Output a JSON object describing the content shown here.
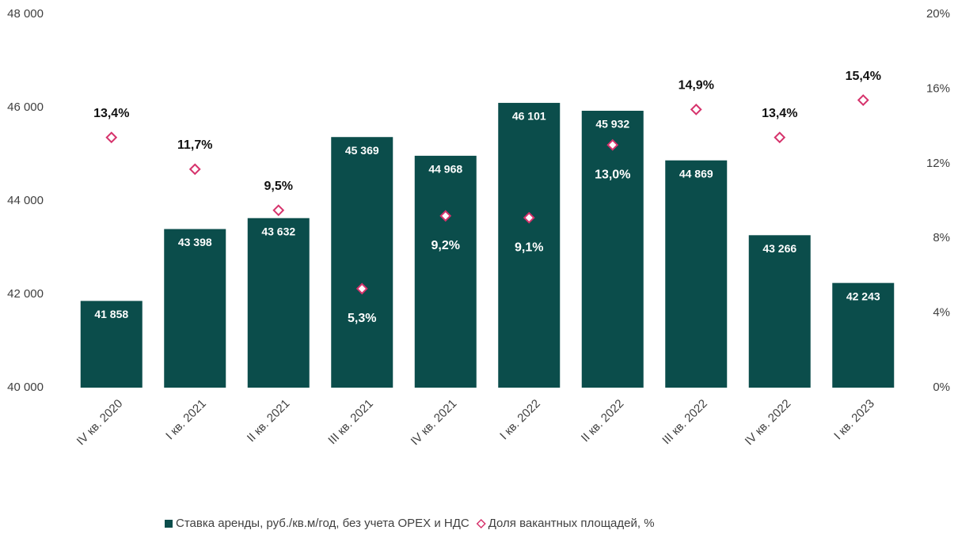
{
  "chart_data": {
    "type": "bar",
    "categories": [
      "IV кв. 2020",
      "I кв. 2021",
      "II кв. 2021",
      "III кв. 2021",
      "IV кв. 2021",
      "I кв. 2022",
      "II кв. 2022",
      "III  кв. 2022",
      "IV кв. 2022",
      "I кв. 2023"
    ],
    "series": [
      {
        "name": "Ставка аренды, руб./кв.м/год, без учета OPEX и НДС",
        "type": "bar",
        "color": "#0b4d4b",
        "values": [
          41858,
          43398,
          43632,
          45369,
          44968,
          46101,
          45932,
          44869,
          43266,
          42243
        ],
        "value_labels": [
          "41 858",
          "43 398",
          "43 632",
          "45 369",
          "44 968",
          "46 101",
          "45 932",
          "44 869",
          "43 266",
          "42 243"
        ]
      },
      {
        "name": "Доля вакантных площадей, %",
        "type": "scatter",
        "axis": "y2",
        "color": "#d6336c",
        "values": [
          13.4,
          11.7,
          9.5,
          5.3,
          9.2,
          9.1,
          13.0,
          14.9,
          13.4,
          15.4
        ],
        "value_labels": [
          "13,4%",
          "11,7%",
          "9,5%",
          "5,3%",
          "9,2%",
          "9,1%",
          "13,0%",
          "14,9%",
          "13,4%",
          "15,4%"
        ]
      }
    ],
    "ylim": [
      40000,
      48000
    ],
    "yticks": [
      {
        "value": 40000,
        "label": "40 000"
      },
      {
        "value": 42000,
        "label": "42 000"
      },
      {
        "value": 44000,
        "label": "44 000"
      },
      {
        "value": 46000,
        "label": "46 000"
      },
      {
        "value": 48000,
        "label": "48 000"
      }
    ],
    "y2lim": [
      0,
      20
    ],
    "y2ticks": [
      {
        "value": 0,
        "label": "0%"
      },
      {
        "value": 4,
        "label": "4%"
      },
      {
        "value": 8,
        "label": "8%"
      },
      {
        "value": 12,
        "label": "12%"
      },
      {
        "value": 16,
        "label": "16%"
      },
      {
        "value": 20,
        "label": "20%"
      }
    ],
    "legend": "bottom"
  }
}
